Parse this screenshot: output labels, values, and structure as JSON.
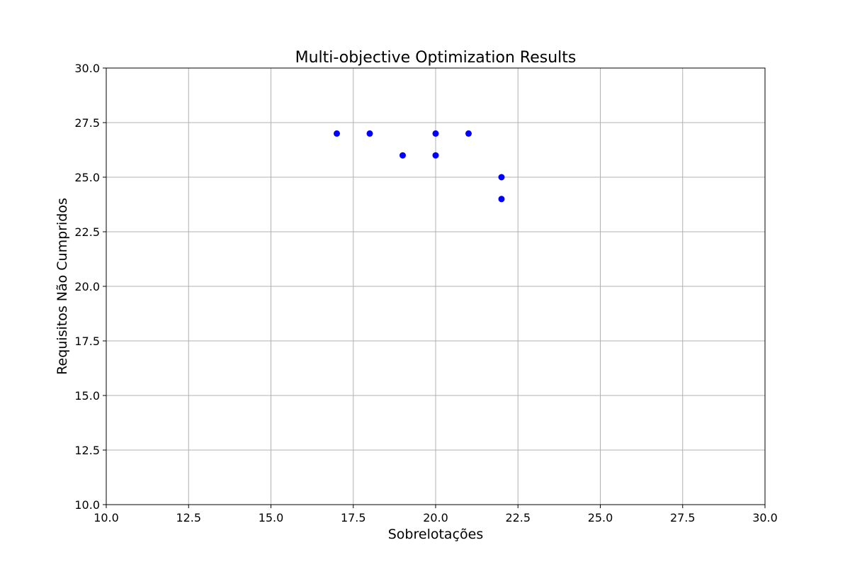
{
  "chart_data": {
    "type": "scatter",
    "title": "Multi-objective Optimization Results",
    "xlabel": "Sobrelotações",
    "ylabel": "Requisitos Não Cumpridos",
    "xlim": [
      10.0,
      30.0
    ],
    "ylim": [
      10.0,
      30.0
    ],
    "x_ticks": [
      "10.0",
      "12.5",
      "15.0",
      "17.5",
      "20.0",
      "22.5",
      "25.0",
      "27.5",
      "30.0"
    ],
    "y_ticks": [
      "10.0",
      "12.5",
      "15.0",
      "17.5",
      "20.0",
      "22.5",
      "25.0",
      "27.5",
      "30.0"
    ],
    "grid": true,
    "series": [
      {
        "color": "#0000ff",
        "points": [
          {
            "x": 17,
            "y": 27
          },
          {
            "x": 18,
            "y": 27
          },
          {
            "x": 19,
            "y": 26
          },
          {
            "x": 20,
            "y": 27
          },
          {
            "x": 20,
            "y": 26
          },
          {
            "x": 21,
            "y": 27
          },
          {
            "x": 22,
            "y": 25
          },
          {
            "x": 22,
            "y": 24
          }
        ]
      }
    ]
  }
}
